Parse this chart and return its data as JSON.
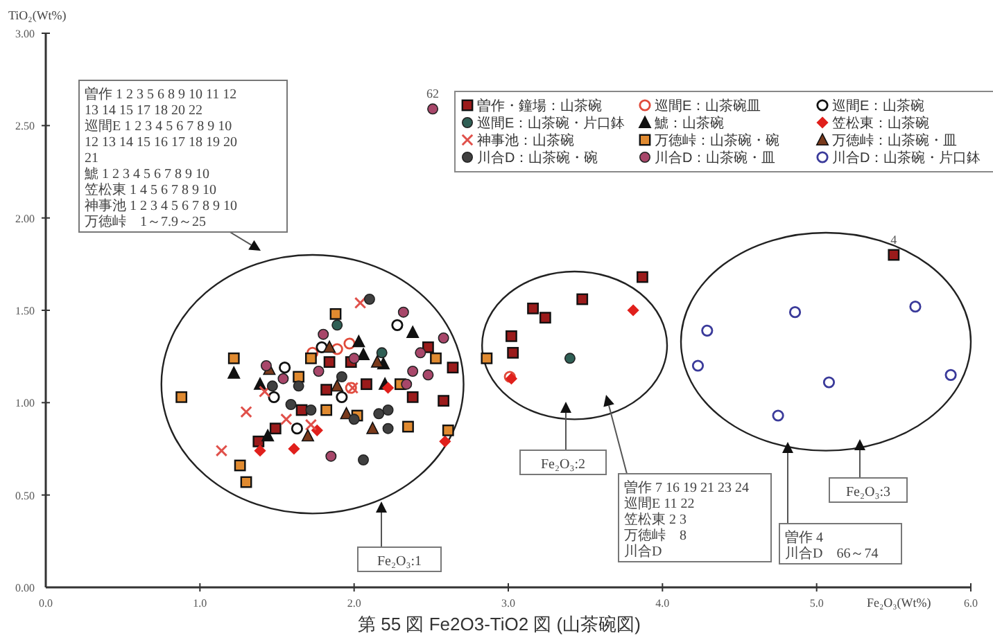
{
  "chart_data": {
    "type": "scatter",
    "title": "第 55 図 Fe2O3-TiO2 図 (山茶碗図)",
    "xlabel": "Fe₂O₃(Wt%)",
    "ylabel": "TiO₂(Wt%)",
    "xlim": [
      0,
      6
    ],
    "ylim": [
      0,
      3
    ],
    "xticks": [
      {
        "value": 0,
        "label": "0.0"
      },
      {
        "value": 1,
        "label": "1.0"
      },
      {
        "value": 2,
        "label": "2.0"
      },
      {
        "value": 3,
        "label": "3.0"
      },
      {
        "value": 4,
        "label": "4.0"
      },
      {
        "value": 5,
        "label": "5.0"
      },
      {
        "value": 6,
        "label": "6.0"
      }
    ],
    "yticks": [
      {
        "value": 0,
        "label": "0.00"
      },
      {
        "value": 0.5,
        "label": "0.50"
      },
      {
        "value": 1,
        "label": "1.00"
      },
      {
        "value": 1.5,
        "label": "1.50"
      },
      {
        "value": 2,
        "label": "2.00"
      },
      {
        "value": 2.5,
        "label": "2.50"
      },
      {
        "value": 3,
        "label": "3.00"
      }
    ],
    "grid": false,
    "legend": "top right",
    "series": [
      {
        "name": "曽作・鐘場：山茶碗",
        "color": "#9b1b1b",
        "marker": "square",
        "x": [
          2.48,
          2.64,
          2.38,
          2.58,
          1.84,
          1.98,
          2.08,
          1.82,
          1.49,
          1.38,
          1.66,
          3.16,
          3.24,
          3.48,
          3.87,
          3.02,
          3.03,
          5.5
        ],
        "values": [
          1.3,
          1.19,
          1.03,
          1.01,
          1.22,
          1.22,
          1.1,
          1.07,
          0.86,
          0.79,
          0.96,
          1.51,
          1.46,
          1.56,
          1.68,
          1.36,
          1.27,
          1.8
        ]
      },
      {
        "name": "巡間E：山茶碗皿",
        "color": "#e04a3a",
        "marker": "circle",
        "x": [
          1.89,
          1.97,
          1.73,
          1.98,
          3.01
        ],
        "values": [
          1.29,
          1.32,
          1.27,
          1.08,
          1.14
        ]
      },
      {
        "name": "巡間E：山茶碗",
        "color": "#111111",
        "marker": "circle",
        "x": [
          2.28,
          1.55,
          1.48,
          1.63,
          1.79,
          1.92
        ],
        "values": [
          1.42,
          1.19,
          1.03,
          0.86,
          1.3,
          1.03
        ]
      },
      {
        "name": "巡間E：山茶碗・片口鉢",
        "color": "#2f5f55",
        "marker": "circle",
        "x": [
          1.89,
          2.18,
          3.4
        ],
        "values": [
          1.42,
          1.27,
          1.24
        ]
      },
      {
        "name": "鯱：山茶碗",
        "color": "#111111",
        "marker": "triangle",
        "x": [
          2.38,
          2.03,
          2.06,
          1.22,
          1.39,
          2.19,
          2.2,
          1.44
        ],
        "values": [
          1.38,
          1.33,
          1.26,
          1.16,
          1.1,
          1.21,
          1.1,
          0.82
        ]
      },
      {
        "name": "笠松東：山茶碗",
        "color": "#e0201c",
        "marker": "diamond",
        "x": [
          1.39,
          1.61,
          1.76,
          2.22,
          2.59,
          3.81,
          3.02
        ],
        "values": [
          0.74,
          0.75,
          0.85,
          1.08,
          0.79,
          1.5,
          1.13
        ]
      },
      {
        "name": "神事池：山茶碗",
        "color": "#e0504a",
        "marker": "cross",
        "x": [
          2.04,
          1.3,
          1.14,
          1.56,
          1.72,
          1.42,
          1.99
        ],
        "values": [
          1.54,
          0.95,
          0.74,
          0.91,
          0.88,
          1.06,
          1.08
        ]
      },
      {
        "name": "万徳峠：山茶碗・碗",
        "color": "#e08a30",
        "marker": "square",
        "x": [
          1.88,
          1.22,
          0.88,
          1.72,
          1.64,
          2.3,
          2.53,
          1.82,
          2.02,
          2.35,
          2.61,
          1.26,
          1.3,
          2.86
        ],
        "values": [
          1.48,
          1.24,
          1.03,
          1.24,
          1.14,
          1.1,
          1.24,
          0.96,
          0.93,
          0.87,
          0.85,
          0.66,
          0.57,
          1.24
        ]
      },
      {
        "name": "万徳峠：山茶碗・皿",
        "color": "#7a3a1c",
        "marker": "triangle",
        "x": [
          1.45,
          1.84,
          2.15,
          1.95,
          2.12,
          1.7,
          1.89
        ],
        "values": [
          1.18,
          1.3,
          1.22,
          0.94,
          0.86,
          0.82,
          1.09
        ]
      },
      {
        "name": "川合D：山茶碗・碗",
        "color": "#404040",
        "marker": "circle",
        "x": [
          2.1,
          1.92,
          1.47,
          1.59,
          1.72,
          2.0,
          2.16,
          2.22,
          2.22,
          2.06,
          1.64
        ],
        "values": [
          1.56,
          1.14,
          1.09,
          0.99,
          0.96,
          0.91,
          0.94,
          0.96,
          0.86,
          0.69,
          1.09
        ]
      },
      {
        "name": "川合D：山茶碗・皿",
        "color": "#a8476a",
        "marker": "circle",
        "x": [
          2.32,
          1.8,
          2.58,
          2.43,
          2.38,
          2.48,
          1.77,
          1.43,
          1.54,
          2.0,
          1.85,
          2.34,
          2.51
        ],
        "values": [
          1.49,
          1.37,
          1.35,
          1.27,
          1.17,
          1.15,
          1.17,
          1.2,
          1.13,
          1.24,
          0.71,
          1.1,
          2.59
        ]
      },
      {
        "name": "川合D：山茶碗・片口鉢",
        "color": "#3a3a9a",
        "marker": "circle",
        "x": [
          4.29,
          4.23,
          4.86,
          5.08,
          4.75,
          5.64,
          5.87
        ],
        "values": [
          1.39,
          1.2,
          1.49,
          1.11,
          0.93,
          1.52,
          1.15
        ]
      }
    ],
    "annotations": [
      {
        "text": "62",
        "x": 2.51,
        "y": 2.59
      },
      {
        "text": "4",
        "x": 5.5,
        "y": 1.8
      },
      "曽作 1 2 3 5 6 8 9 10 11 12\n13 14 15 17 18 20 22\n巡間E 1 2 3 4 5 6 7 8 9 10\n12 13 14 15 16 17 18 19 20\n21\n鯱 1 2 3 4 5 6 7 8 9 10\n笠松東 1 4 5 6 7 8 9 10\n神事池 1 2 3 4 5 6 7 8 9 10\n万徳峠　1～7.9～25",
      "Fe₂O₃:1",
      "Fe₂O₃:2",
      "曽作 7 16 19 21 23 24\n巡間E 11 22\n笠松東 2 3\n万徳峠　8\n川合D",
      "Fe₂O₃:3",
      "曽作 4\n川合D　66～74"
    ]
  }
}
